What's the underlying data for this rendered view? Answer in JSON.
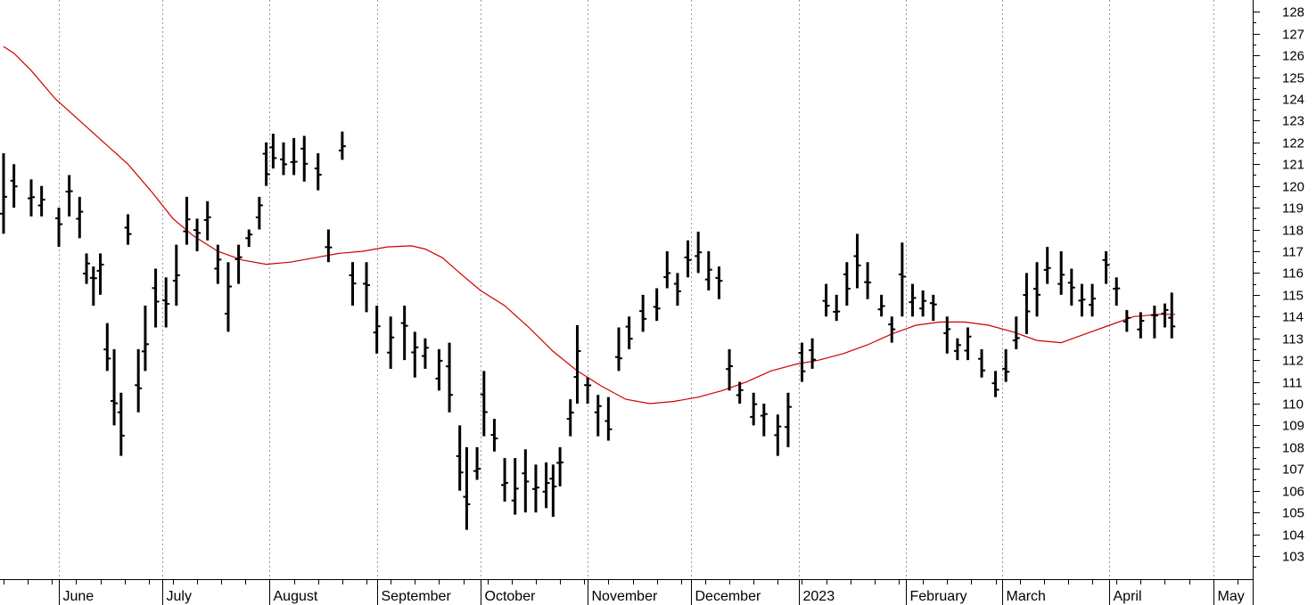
{
  "chart_data": {
    "type": "ohlc",
    "title": "",
    "xlabel": "",
    "ylabel": "",
    "ylim": [
      102,
      128
    ],
    "y_ticks": [
      103,
      104,
      105,
      106,
      107,
      108,
      109,
      110,
      111,
      112,
      113,
      114,
      115,
      116,
      117,
      118,
      119,
      120,
      121,
      122,
      123,
      124,
      125,
      126,
      127,
      128
    ],
    "x_tick_labels": [
      "June",
      "July",
      "August",
      "September",
      "October",
      "November",
      "December",
      "2023",
      "February",
      "March",
      "April",
      "May"
    ],
    "grid": "vertical dotted at month starts",
    "ohlc_bars": [
      {
        "date": "2022-05-16",
        "high": 121.5,
        "low": 117.8
      },
      {
        "date": "2022-05-19",
        "high": 121.0,
        "low": 119.0
      },
      {
        "date": "2022-05-24",
        "high": 120.3,
        "low": 118.6
      },
      {
        "date": "2022-05-27",
        "high": 120.0,
        "low": 118.6
      },
      {
        "date": "2022-06-01",
        "high": 119.0,
        "low": 117.2
      },
      {
        "date": "2022-06-04",
        "high": 120.5,
        "low": 118.6
      },
      {
        "date": "2022-06-07",
        "high": 119.5,
        "low": 117.6
      },
      {
        "date": "2022-06-09",
        "high": 116.9,
        "low": 115.5
      },
      {
        "date": "2022-06-11",
        "high": 116.3,
        "low": 114.5
      },
      {
        "date": "2022-06-13",
        "high": 116.9,
        "low": 115.0
      },
      {
        "date": "2022-06-15",
        "high": 113.7,
        "low": 111.5
      },
      {
        "date": "2022-06-17",
        "high": 112.5,
        "low": 109.0
      },
      {
        "date": "2022-06-19",
        "high": 110.5,
        "low": 107.6
      },
      {
        "date": "2022-06-21",
        "high": 118.7,
        "low": 117.3
      },
      {
        "date": "2022-06-24",
        "high": 112.5,
        "low": 109.6
      },
      {
        "date": "2022-06-26",
        "high": 114.5,
        "low": 111.5
      },
      {
        "date": "2022-06-29",
        "high": 116.2,
        "low": 113.5
      },
      {
        "date": "2022-07-02",
        "high": 115.8,
        "low": 113.5
      },
      {
        "date": "2022-07-05",
        "high": 117.3,
        "low": 114.5
      },
      {
        "date": "2022-07-08",
        "high": 119.5,
        "low": 117.3
      },
      {
        "date": "2022-07-11",
        "high": 118.5,
        "low": 117.0
      },
      {
        "date": "2022-07-14",
        "high": 119.3,
        "low": 117.5
      },
      {
        "date": "2022-07-17",
        "high": 117.3,
        "low": 115.5
      },
      {
        "date": "2022-07-20",
        "high": 116.5,
        "low": 113.3
      },
      {
        "date": "2022-07-23",
        "high": 117.3,
        "low": 115.5
      },
      {
        "date": "2022-07-26",
        "high": 118.0,
        "low": 117.2
      },
      {
        "date": "2022-07-29",
        "high": 119.5,
        "low": 118.0
      },
      {
        "date": "2022-07-31",
        "high": 122.0,
        "low": 120.0
      },
      {
        "date": "2022-08-02",
        "high": 122.4,
        "low": 120.8
      },
      {
        "date": "2022-08-05",
        "high": 122.0,
        "low": 120.5
      },
      {
        "date": "2022-08-08",
        "high": 122.2,
        "low": 120.5
      },
      {
        "date": "2022-08-11",
        "high": 122.3,
        "low": 120.2
      },
      {
        "date": "2022-08-15",
        "high": 121.5,
        "low": 119.8
      },
      {
        "date": "2022-08-18",
        "high": 118.0,
        "low": 116.5
      },
      {
        "date": "2022-08-22",
        "high": 122.5,
        "low": 121.2
      },
      {
        "date": "2022-08-25",
        "high": 116.5,
        "low": 114.5
      },
      {
        "date": "2022-08-29",
        "high": 116.5,
        "low": 114.2
      },
      {
        "date": "2022-09-01",
        "high": 114.5,
        "low": 112.3
      },
      {
        "date": "2022-09-05",
        "high": 114.0,
        "low": 111.6
      },
      {
        "date": "2022-09-09",
        "high": 114.5,
        "low": 112.0
      },
      {
        "date": "2022-09-12",
        "high": 113.3,
        "low": 111.2
      },
      {
        "date": "2022-09-15",
        "high": 113.0,
        "low": 111.6
      },
      {
        "date": "2022-09-19",
        "high": 112.5,
        "low": 110.6
      },
      {
        "date": "2022-09-22",
        "high": 112.8,
        "low": 109.6
      },
      {
        "date": "2022-09-25",
        "high": 109.0,
        "low": 106.0
      },
      {
        "date": "2022-09-27",
        "high": 108.0,
        "low": 104.2
      },
      {
        "date": "2022-09-30",
        "high": 108.0,
        "low": 106.5
      },
      {
        "date": "2022-10-02",
        "high": 111.5,
        "low": 108.5
      },
      {
        "date": "2022-10-05",
        "high": 109.3,
        "low": 107.8
      },
      {
        "date": "2022-10-08",
        "high": 107.5,
        "low": 105.5
      },
      {
        "date": "2022-10-11",
        "high": 107.5,
        "low": 104.9
      },
      {
        "date": "2022-10-14",
        "high": 107.9,
        "low": 105.0
      },
      {
        "date": "2022-10-17",
        "high": 107.2,
        "low": 105.0
      },
      {
        "date": "2022-10-20",
        "high": 107.3,
        "low": 105.2
      },
      {
        "date": "2022-10-22",
        "high": 107.2,
        "low": 104.8
      },
      {
        "date": "2022-10-24",
        "high": 108.0,
        "low": 106.2
      },
      {
        "date": "2022-10-27",
        "high": 110.2,
        "low": 108.5
      },
      {
        "date": "2022-10-29",
        "high": 113.6,
        "low": 110.0
      },
      {
        "date": "2022-11-01",
        "high": 111.2,
        "low": 110.0
      },
      {
        "date": "2022-11-04",
        "high": 110.4,
        "low": 108.5
      },
      {
        "date": "2022-11-07",
        "high": 110.3,
        "low": 108.3
      },
      {
        "date": "2022-11-10",
        "high": 113.5,
        "low": 111.5
      },
      {
        "date": "2022-11-13",
        "high": 114.0,
        "low": 112.5
      },
      {
        "date": "2022-11-17",
        "high": 115.0,
        "low": 113.3
      },
      {
        "date": "2022-11-21",
        "high": 115.3,
        "low": 113.8
      },
      {
        "date": "2022-11-24",
        "high": 117.0,
        "low": 115.3
      },
      {
        "date": "2022-11-27",
        "high": 116.0,
        "low": 114.5
      },
      {
        "date": "2022-11-30",
        "high": 117.5,
        "low": 115.8
      },
      {
        "date": "2022-12-03",
        "high": 117.9,
        "low": 116.0
      },
      {
        "date": "2022-12-06",
        "high": 117.0,
        "low": 115.2
      },
      {
        "date": "2022-12-09",
        "high": 116.3,
        "low": 114.8
      },
      {
        "date": "2022-12-12",
        "high": 112.5,
        "low": 110.6
      },
      {
        "date": "2022-12-15",
        "high": 111.0,
        "low": 110.0
      },
      {
        "date": "2022-12-19",
        "high": 110.5,
        "low": 109.0
      },
      {
        "date": "2022-12-22",
        "high": 110.0,
        "low": 108.5
      },
      {
        "date": "2022-12-26",
        "high": 109.5,
        "low": 107.6
      },
      {
        "date": "2022-12-29",
        "high": 110.5,
        "low": 108.0
      },
      {
        "date": "2023-01-02",
        "high": 112.8,
        "low": 111.0
      },
      {
        "date": "2023-01-05",
        "high": 113.0,
        "low": 111.6
      },
      {
        "date": "2023-01-09",
        "high": 115.5,
        "low": 114.0
      },
      {
        "date": "2023-01-12",
        "high": 115.0,
        "low": 113.8
      },
      {
        "date": "2023-01-15",
        "high": 116.5,
        "low": 114.5
      },
      {
        "date": "2023-01-18",
        "high": 117.8,
        "low": 115.3
      },
      {
        "date": "2023-01-21",
        "high": 116.5,
        "low": 114.8
      },
      {
        "date": "2023-01-25",
        "high": 115.0,
        "low": 114.0
      },
      {
        "date": "2023-01-28",
        "high": 114.0,
        "low": 112.8
      },
      {
        "date": "2023-01-31",
        "high": 117.4,
        "low": 114.0
      },
      {
        "date": "2023-02-03",
        "high": 115.5,
        "low": 114.0
      },
      {
        "date": "2023-02-06",
        "high": 115.2,
        "low": 114.0
      },
      {
        "date": "2023-02-09",
        "high": 115.0,
        "low": 113.8
      },
      {
        "date": "2023-02-13",
        "high": 114.0,
        "low": 112.3
      },
      {
        "date": "2023-02-16",
        "high": 113.0,
        "low": 112.0
      },
      {
        "date": "2023-02-19",
        "high": 113.5,
        "low": 112.0
      },
      {
        "date": "2023-02-23",
        "high": 112.5,
        "low": 111.2
      },
      {
        "date": "2023-02-27",
        "high": 111.5,
        "low": 110.3
      },
      {
        "date": "2023-03-02",
        "high": 112.5,
        "low": 111.0
      },
      {
        "date": "2023-03-05",
        "high": 114.0,
        "low": 112.5
      },
      {
        "date": "2023-03-08",
        "high": 116.0,
        "low": 113.2
      },
      {
        "date": "2023-03-11",
        "high": 116.5,
        "low": 114.0
      },
      {
        "date": "2023-03-14",
        "high": 117.2,
        "low": 115.5
      },
      {
        "date": "2023-03-18",
        "high": 117.0,
        "low": 115.0
      },
      {
        "date": "2023-03-21",
        "high": 116.2,
        "low": 114.5
      },
      {
        "date": "2023-03-24",
        "high": 115.5,
        "low": 114.0
      },
      {
        "date": "2023-03-27",
        "high": 115.5,
        "low": 114.0
      },
      {
        "date": "2023-03-31",
        "high": 117.0,
        "low": 115.5
      },
      {
        "date": "2023-04-03",
        "high": 115.8,
        "low": 114.5
      },
      {
        "date": "2023-04-06",
        "high": 114.3,
        "low": 113.3
      },
      {
        "date": "2023-04-10",
        "high": 114.2,
        "low": 113.0
      },
      {
        "date": "2023-04-14",
        "high": 114.5,
        "low": 113.0
      },
      {
        "date": "2023-04-17",
        "high": 114.6,
        "low": 113.5
      },
      {
        "date": "2023-04-19",
        "high": 115.1,
        "low": 113.0
      }
    ],
    "moving_average": {
      "color": "#cc0000",
      "points": [
        {
          "date": "2022-05-16",
          "value": 126.4
        },
        {
          "date": "2022-05-19",
          "value": 126.1
        },
        {
          "date": "2022-05-24",
          "value": 125.3
        },
        {
          "date": "2022-05-31",
          "value": 124.0
        },
        {
          "date": "2022-06-07",
          "value": 123.0
        },
        {
          "date": "2022-06-14",
          "value": 122.0
        },
        {
          "date": "2022-06-21",
          "value": 121.0
        },
        {
          "date": "2022-06-28",
          "value": 119.7
        },
        {
          "date": "2022-07-04",
          "value": 118.5
        },
        {
          "date": "2022-07-10",
          "value": 117.7
        },
        {
          "date": "2022-07-17",
          "value": 117.0
        },
        {
          "date": "2022-07-24",
          "value": 116.6
        },
        {
          "date": "2022-07-31",
          "value": 116.4
        },
        {
          "date": "2022-08-07",
          "value": 116.5
        },
        {
          "date": "2022-08-14",
          "value": 116.7
        },
        {
          "date": "2022-08-21",
          "value": 116.9
        },
        {
          "date": "2022-08-28",
          "value": 117.0
        },
        {
          "date": "2022-09-04",
          "value": 117.2
        },
        {
          "date": "2022-09-11",
          "value": 117.25
        },
        {
          "date": "2022-09-15",
          "value": 117.1
        },
        {
          "date": "2022-09-20",
          "value": 116.7
        },
        {
          "date": "2022-09-25",
          "value": 116.0
        },
        {
          "date": "2022-10-01",
          "value": 115.2
        },
        {
          "date": "2022-10-08",
          "value": 114.5
        },
        {
          "date": "2022-10-15",
          "value": 113.5
        },
        {
          "date": "2022-10-22",
          "value": 112.4
        },
        {
          "date": "2022-10-29",
          "value": 111.5
        },
        {
          "date": "2022-11-05",
          "value": 110.8
        },
        {
          "date": "2022-11-12",
          "value": 110.2
        },
        {
          "date": "2022-11-19",
          "value": 110.0
        },
        {
          "date": "2022-11-26",
          "value": 110.1
        },
        {
          "date": "2022-12-03",
          "value": 110.3
        },
        {
          "date": "2022-12-10",
          "value": 110.6
        },
        {
          "date": "2022-12-17",
          "value": 111.0
        },
        {
          "date": "2022-12-24",
          "value": 111.5
        },
        {
          "date": "2022-12-31",
          "value": 111.8
        },
        {
          "date": "2023-01-07",
          "value": 112.0
        },
        {
          "date": "2023-01-14",
          "value": 112.3
        },
        {
          "date": "2023-01-21",
          "value": 112.7
        },
        {
          "date": "2023-01-28",
          "value": 113.2
        },
        {
          "date": "2023-02-04",
          "value": 113.6
        },
        {
          "date": "2023-02-11",
          "value": 113.75
        },
        {
          "date": "2023-02-18",
          "value": 113.75
        },
        {
          "date": "2023-02-25",
          "value": 113.6
        },
        {
          "date": "2023-03-04",
          "value": 113.3
        },
        {
          "date": "2023-03-11",
          "value": 112.9
        },
        {
          "date": "2023-03-18",
          "value": 112.8
        },
        {
          "date": "2023-03-25",
          "value": 113.2
        },
        {
          "date": "2023-04-01",
          "value": 113.6
        },
        {
          "date": "2023-04-08",
          "value": 114.0
        },
        {
          "date": "2023-04-15",
          "value": 114.1
        },
        {
          "date": "2023-04-20",
          "value": 114.1
        }
      ]
    }
  }
}
